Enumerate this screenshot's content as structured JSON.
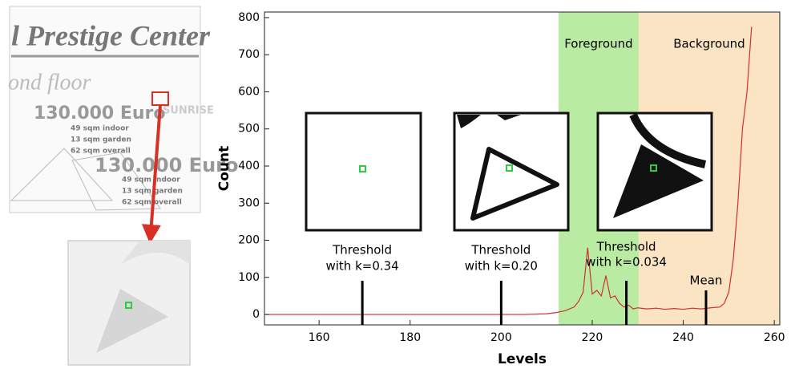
{
  "document_scan": {
    "heading": "l Prestige Center",
    "floor": "ond floor",
    "brand": "SUNRISE",
    "listings": [
      {
        "price": "130.000 Euro",
        "lines": [
          "49 sqm indoor",
          "13 sqm garden",
          "62 sqm overall"
        ]
      },
      {
        "price": "130.000 Euro",
        "lines": [
          "49 sqm indoor",
          "13 sqm garden",
          "62 sqm overall"
        ]
      }
    ]
  },
  "chart_data": {
    "type": "line",
    "xlabel": "Levels",
    "ylabel": "Count",
    "x": [
      148,
      205,
      210,
      212,
      214,
      216,
      217,
      218,
      219,
      220,
      221,
      222,
      223,
      224,
      225,
      226,
      227,
      228,
      229,
      230,
      232,
      234,
      236,
      238,
      240,
      242,
      244,
      246,
      248,
      249,
      250,
      251,
      252,
      253,
      254,
      255
    ],
    "values": [
      0,
      0,
      2,
      5,
      10,
      20,
      35,
      60,
      180,
      55,
      65,
      50,
      105,
      45,
      50,
      30,
      20,
      25,
      15,
      18,
      15,
      17,
      14,
      16,
      14,
      17,
      15,
      18,
      20,
      30,
      60,
      150,
      300,
      500,
      600,
      775
    ],
    "color": "#d03030",
    "xlim": [
      148,
      261.2
    ],
    "ylim": [
      -28,
      815
    ],
    "xticks": [
      160,
      180,
      200,
      220,
      240,
      260
    ],
    "yticks": [
      0,
      100,
      200,
      300,
      400,
      500,
      600,
      700,
      800
    ],
    "regions": [
      {
        "label": "Foreground",
        "range": [
          212.6,
          230.2
        ],
        "color": "#b9eba3"
      },
      {
        "label": "Background",
        "range": [
          230.2,
          261.2
        ],
        "color": "#fbe4c3"
      }
    ],
    "annotations": [
      {
        "lines": [
          "Threshold",
          "with k=0.34"
        ],
        "x": 169.5
      },
      {
        "lines": [
          "Threshold",
          "with k=0.20"
        ],
        "x": 200
      },
      {
        "lines": [
          "Threshold",
          "with k=0.034"
        ],
        "x": 227.5
      },
      {
        "lines": [
          "Mean"
        ],
        "x": 245
      }
    ]
  }
}
